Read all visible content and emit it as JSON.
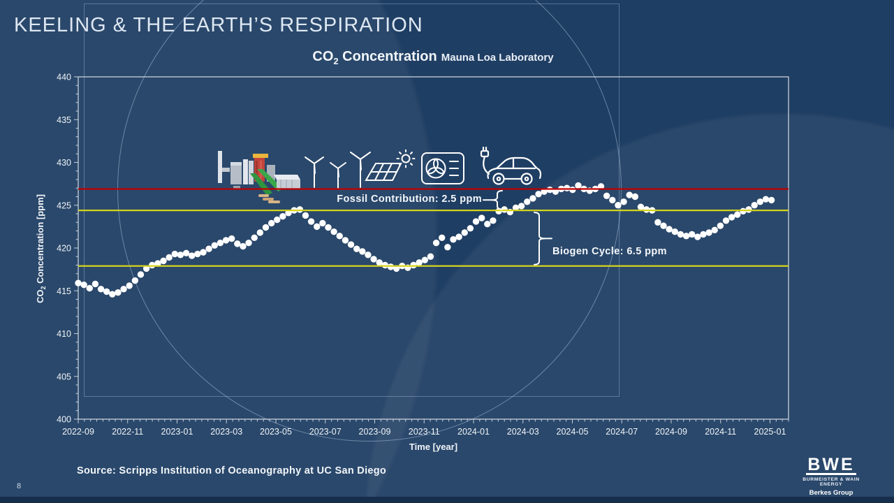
{
  "slide": {
    "title": "KEELING & THE EARTH’S RESPIRATION",
    "page_number": "8",
    "source": "Source: Scripps Institution of Oceanography at UC San Diego",
    "logo": {
      "abbr": "BWE",
      "name": "BURMEISTER & WAIN ENERGY",
      "group": "Berkes Group"
    }
  },
  "icons": [
    "biomass-plant",
    "wind-turbines",
    "solar-panel",
    "heat-pump",
    "electric-car"
  ],
  "colors": {
    "background": "#1f3e63",
    "axis": "#c7d0da",
    "dot": "#ffffff",
    "fossil_line": "#c00000",
    "biogen_line": "#d4d41c"
  },
  "chart_data": {
    "type": "scatter",
    "title_prefix": "CO",
    "title_subscript": "2",
    "title_rest": " Concentration",
    "subtitle": "Mauna Loa Laboratory",
    "xlabel": "Time [year]",
    "ylabel_prefix": "CO",
    "ylabel_subscript": "2",
    "ylabel_rest": " Concentration [ppm]",
    "ylim": [
      400,
      440
    ],
    "y_major_step": 5,
    "y_minor_step": 1,
    "x_axis_span_months": 28.75,
    "x_tick_interval_months": 2,
    "x_minor_tick_months": 0.25,
    "x_tick_labels": [
      "2022-09",
      "2022-11",
      "2023-01",
      "2023-03",
      "2023-05",
      "2023-07",
      "2023-09",
      "2023-11",
      "2024-01",
      "2024-03",
      "2024-05",
      "2024-07",
      "2024-09",
      "2024-11",
      "2025-01"
    ],
    "grid": false,
    "legend": "none",
    "reference_lines": [
      {
        "name": "fossil-upper",
        "value": 426.9,
        "color": "#c00000"
      },
      {
        "name": "biogen-upper",
        "value": 424.4,
        "color": "#d4d41c"
      },
      {
        "name": "biogen-lower",
        "value": 417.9,
        "color": "#d4d41c"
      }
    ],
    "annotations": [
      {
        "name": "fossil",
        "text": "Fossil Contribution: 2.5 ppm",
        "from_ppm": 426.9,
        "to_ppm": 424.4
      },
      {
        "name": "biogen",
        "text": "Biogen Cycle: 6.5 ppm",
        "from_ppm": 424.4,
        "to_ppm": 417.9
      }
    ],
    "series": [
      {
        "name": "Weekly CO2 concentration",
        "marker": "circle",
        "color": "#ffffff",
        "x_unit": "months_after_2022-09",
        "points": [
          [
            0.0,
            415.9
          ],
          [
            0.23,
            415.7
          ],
          [
            0.46,
            415.3
          ],
          [
            0.69,
            415.8
          ],
          [
            0.92,
            415.2
          ],
          [
            1.15,
            414.9
          ],
          [
            1.38,
            414.6
          ],
          [
            1.61,
            414.8
          ],
          [
            1.84,
            415.2
          ],
          [
            2.07,
            415.6
          ],
          [
            2.3,
            416.2
          ],
          [
            2.53,
            416.9
          ],
          [
            2.76,
            417.6
          ],
          [
            2.99,
            418.0
          ],
          [
            3.22,
            418.2
          ],
          [
            3.45,
            418.5
          ],
          [
            3.68,
            418.9
          ],
          [
            3.91,
            419.3
          ],
          [
            4.14,
            419.2
          ],
          [
            4.37,
            419.4
          ],
          [
            4.6,
            419.1
          ],
          [
            4.83,
            419.3
          ],
          [
            5.06,
            419.5
          ],
          [
            5.29,
            419.9
          ],
          [
            5.52,
            420.3
          ],
          [
            5.75,
            420.6
          ],
          [
            5.98,
            420.9
          ],
          [
            6.21,
            421.1
          ],
          [
            6.44,
            420.5
          ],
          [
            6.67,
            420.2
          ],
          [
            6.9,
            420.6
          ],
          [
            7.13,
            421.2
          ],
          [
            7.36,
            421.8
          ],
          [
            7.59,
            422.4
          ],
          [
            7.82,
            422.9
          ],
          [
            8.05,
            423.3
          ],
          [
            8.28,
            423.7
          ],
          [
            8.51,
            424.1
          ],
          [
            8.74,
            424.4
          ],
          [
            8.97,
            424.5
          ],
          [
            9.2,
            423.8
          ],
          [
            9.43,
            423.1
          ],
          [
            9.66,
            422.5
          ],
          [
            9.89,
            422.9
          ],
          [
            10.12,
            422.4
          ],
          [
            10.35,
            421.9
          ],
          [
            10.58,
            421.4
          ],
          [
            10.81,
            420.9
          ],
          [
            11.04,
            420.4
          ],
          [
            11.27,
            419.9
          ],
          [
            11.5,
            419.6
          ],
          [
            11.73,
            419.2
          ],
          [
            11.96,
            418.7
          ],
          [
            12.19,
            418.3
          ],
          [
            12.42,
            418.0
          ],
          [
            12.65,
            417.8
          ],
          [
            12.88,
            417.6
          ],
          [
            13.11,
            417.9
          ],
          [
            13.34,
            417.7
          ],
          [
            13.57,
            418.0
          ],
          [
            13.8,
            418.3
          ],
          [
            14.03,
            418.6
          ],
          [
            14.26,
            419.0
          ],
          [
            14.49,
            420.6
          ],
          [
            14.72,
            421.2
          ],
          [
            14.95,
            420.1
          ],
          [
            15.18,
            421.0
          ],
          [
            15.41,
            421.3
          ],
          [
            15.64,
            421.8
          ],
          [
            15.87,
            422.3
          ],
          [
            16.1,
            423.1
          ],
          [
            16.33,
            423.5
          ],
          [
            16.56,
            422.8
          ],
          [
            16.79,
            423.2
          ],
          [
            17.02,
            424.3
          ],
          [
            17.25,
            424.5
          ],
          [
            17.48,
            424.2
          ],
          [
            17.71,
            424.7
          ],
          [
            17.94,
            424.9
          ],
          [
            18.17,
            425.4
          ],
          [
            18.4,
            425.8
          ],
          [
            18.63,
            426.3
          ],
          [
            18.86,
            426.6
          ],
          [
            19.09,
            426.8
          ],
          [
            19.32,
            426.6
          ],
          [
            19.55,
            426.9
          ],
          [
            19.78,
            427.0
          ],
          [
            20.01,
            426.8
          ],
          [
            20.24,
            427.3
          ],
          [
            20.47,
            426.9
          ],
          [
            20.7,
            426.7
          ],
          [
            20.93,
            426.9
          ],
          [
            21.16,
            427.2
          ],
          [
            21.39,
            426.1
          ],
          [
            21.62,
            425.6
          ],
          [
            21.85,
            425.0
          ],
          [
            22.08,
            425.4
          ],
          [
            22.31,
            426.2
          ],
          [
            22.54,
            426.0
          ],
          [
            22.77,
            424.8
          ],
          [
            23.0,
            424.5
          ],
          [
            23.23,
            424.4
          ],
          [
            23.46,
            423.0
          ],
          [
            23.69,
            422.6
          ],
          [
            23.92,
            422.2
          ],
          [
            24.15,
            421.9
          ],
          [
            24.38,
            421.6
          ],
          [
            24.61,
            421.4
          ],
          [
            24.84,
            421.6
          ],
          [
            25.07,
            421.3
          ],
          [
            25.3,
            421.6
          ],
          [
            25.53,
            421.8
          ],
          [
            25.76,
            422.1
          ],
          [
            25.99,
            422.6
          ],
          [
            26.22,
            423.2
          ],
          [
            26.45,
            423.6
          ],
          [
            26.68,
            423.9
          ],
          [
            26.91,
            424.3
          ],
          [
            27.14,
            424.5
          ],
          [
            27.37,
            425.0
          ],
          [
            27.6,
            425.4
          ],
          [
            27.83,
            425.7
          ],
          [
            28.06,
            425.6
          ]
        ]
      }
    ]
  }
}
